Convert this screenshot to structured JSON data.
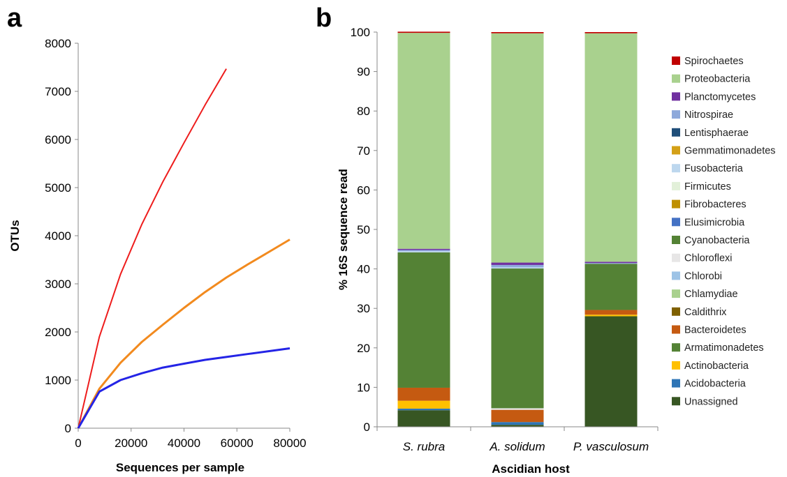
{
  "panel_letters": {
    "a": "a",
    "b": "b"
  },
  "colors": {
    "rarefaction_red": "#ee1c1c",
    "rarefaction_orange": "#f28a1e",
    "rarefaction_blue": "#2424e6"
  },
  "chart_data": [
    {
      "type": "line",
      "panel": "a",
      "title": "",
      "xlabel": "Sequences per sample",
      "ylabel": "OTUs",
      "xlim": [
        0,
        80000
      ],
      "ylim": [
        0,
        8000
      ],
      "xticks": [
        "0",
        "20000",
        "40000",
        "60000",
        "80000"
      ],
      "yticks": [
        "0",
        "1000",
        "2000",
        "3000",
        "4000",
        "5000",
        "6000",
        "7000",
        "8000"
      ],
      "grid": false,
      "legend": "none",
      "series": [
        {
          "color": "#ee1c1c",
          "x": [
            0,
            8000,
            16000,
            24000,
            32000,
            40000,
            48000,
            56000
          ],
          "y": [
            0,
            1900,
            3200,
            4230,
            5120,
            5930,
            6720,
            7470
          ]
        },
        {
          "color": "#f28a1e",
          "x": [
            0,
            8000,
            16000,
            24000,
            32000,
            40000,
            48000,
            56000,
            64000,
            72000,
            80000
          ],
          "y": [
            0,
            820,
            1360,
            1790,
            2150,
            2500,
            2830,
            3130,
            3400,
            3660,
            3920
          ]
        },
        {
          "color": "#2424e6",
          "x": [
            0,
            8000,
            16000,
            24000,
            32000,
            40000,
            48000,
            56000,
            64000,
            72000,
            80000
          ],
          "y": [
            0,
            760,
            1000,
            1140,
            1260,
            1340,
            1420,
            1480,
            1540,
            1600,
            1660
          ]
        }
      ]
    },
    {
      "type": "bar",
      "stacked": true,
      "panel": "b",
      "title": "",
      "xlabel": "Ascidian host",
      "ylabel": "% 16S sequence read",
      "ylim": [
        0,
        100
      ],
      "yticks": [
        "0",
        "10",
        "20",
        "30",
        "40",
        "50",
        "60",
        "70",
        "80",
        "90",
        "100"
      ],
      "grid": false,
      "legend": "right",
      "categories": [
        "S. rubra",
        "A. solidum",
        "P. vasculosum"
      ],
      "series": [
        {
          "name": "Unassigned",
          "color": "#375623",
          "values": [
            4.2,
            0.5,
            28.0
          ]
        },
        {
          "name": "Acidobacteria",
          "color": "#2e75b6",
          "values": [
            0.4,
            0.7,
            0.0
          ]
        },
        {
          "name": "Actinobacteria",
          "color": "#ffc000",
          "values": [
            2.0,
            0.0,
            0.4
          ]
        },
        {
          "name": "Armatimonadetes",
          "color": "#548235",
          "values": [
            0.0,
            0.0,
            0.0
          ]
        },
        {
          "name": "Bacteroidetes",
          "color": "#c55a11",
          "values": [
            3.3,
            3.1,
            1.2
          ]
        },
        {
          "name": "Caldithrix",
          "color": "#7f6000",
          "values": [
            0.0,
            0.0,
            0.0
          ]
        },
        {
          "name": "Chlamydiae",
          "color": "#a9d18e",
          "values": [
            0.0,
            0.0,
            0.0
          ]
        },
        {
          "name": "Chlorobi",
          "color": "#9dc3e6",
          "values": [
            0.0,
            0.0,
            0.0
          ]
        },
        {
          "name": "Chloroflexi",
          "color": "#e7e6e6",
          "values": [
            0.0,
            0.4,
            0.0
          ]
        },
        {
          "name": "Cyanobacteria",
          "color": "#548235",
          "values": [
            34.3,
            35.4,
            11.7
          ]
        },
        {
          "name": "Elusimicrobia",
          "color": "#4472c4",
          "values": [
            0.0,
            0.0,
            0.0
          ]
        },
        {
          "name": "Fibrobacteres",
          "color": "#bf9000",
          "values": [
            0.0,
            0.0,
            0.0
          ]
        },
        {
          "name": "Firmicutes",
          "color": "#e2f0d9",
          "values": [
            0.0,
            0.0,
            0.0
          ]
        },
        {
          "name": "Fusobacteria",
          "color": "#bdd7ee",
          "values": [
            0.3,
            0.3,
            0.0
          ]
        },
        {
          "name": "Gemmatimonadetes",
          "color": "#d4a017",
          "values": [
            0.0,
            0.0,
            0.0
          ]
        },
        {
          "name": "Lentisphaerae",
          "color": "#1f4e79",
          "values": [
            0.0,
            0.0,
            0.0
          ]
        },
        {
          "name": "Nitrospirae",
          "color": "#8ea9db",
          "values": [
            0.3,
            0.6,
            0.2
          ]
        },
        {
          "name": "Planctomycetes",
          "color": "#7030a0",
          "values": [
            0.3,
            0.6,
            0.3
          ]
        },
        {
          "name": "Proteobacteria",
          "color": "#a9d18e",
          "values": [
            54.7,
            58.1,
            57.9
          ]
        },
        {
          "name": "Spirochaetes",
          "color": "#c00000",
          "values": [
            0.3,
            0.3,
            0.3
          ]
        }
      ],
      "legend_order": [
        "Spirochaetes",
        "Proteobacteria",
        "Planctomycetes",
        "Nitrospirae",
        "Lentisphaerae",
        "Gemmatimonadetes",
        "Fusobacteria",
        "Firmicutes",
        "Fibrobacteres",
        "Elusimicrobia",
        "Cyanobacteria",
        "Chloroflexi",
        "Chlorobi",
        "Chlamydiae",
        "Caldithrix",
        "Bacteroidetes",
        "Armatimonadetes",
        "Actinobacteria",
        "Acidobacteria",
        "Unassigned"
      ]
    }
  ]
}
